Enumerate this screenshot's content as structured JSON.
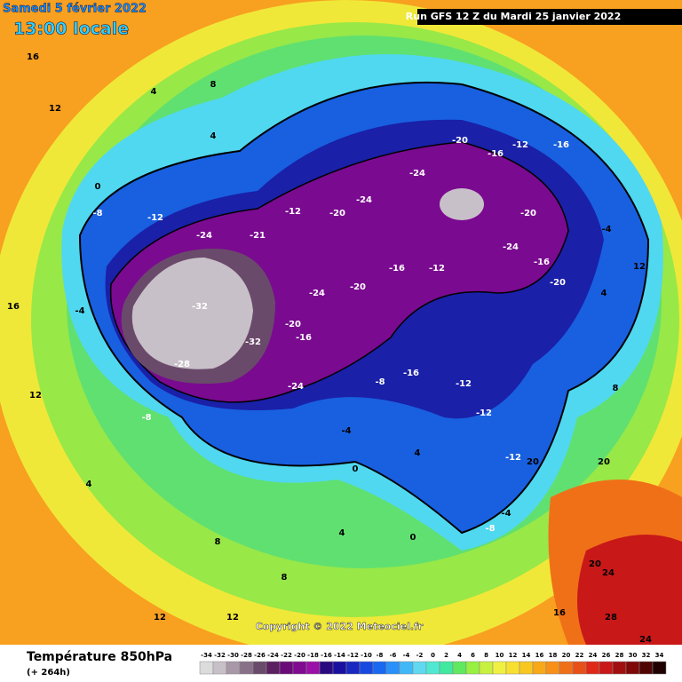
{
  "header": {
    "date": "Samedi 5 février 2022",
    "time": "13:00 locale",
    "run": "Run GFS 12 Z du Mardi 25 janvier 2022"
  },
  "copyright": "Copyright © 2022 Meteociel.fr",
  "footer": {
    "title": "Température 850hPa",
    "lead": "(+ 264h)"
  },
  "legend": {
    "ticks": [
      -34,
      -32,
      -30,
      -28,
      -26,
      -24,
      -22,
      -20,
      -18,
      -16,
      -14,
      -12,
      -10,
      -8,
      -6,
      -4,
      -2,
      0,
      2,
      4,
      6,
      8,
      10,
      12,
      14,
      16,
      18,
      20,
      22,
      24,
      26,
      28,
      30,
      32,
      34
    ],
    "colors": [
      "#dcdcdc",
      "#c8c0c8",
      "#a898a8",
      "#887088",
      "#6a4a6a",
      "#5a2060",
      "#6a0a78",
      "#800a90",
      "#9a10a8",
      "#2a0a80",
      "#1a10a0",
      "#1828c0",
      "#1848e0",
      "#1868f0",
      "#2890f8",
      "#40b8f8",
      "#60d8f0",
      "#50e8d0",
      "#40e8a0",
      "#60e860",
      "#98f040",
      "#c8f040",
      "#f0f040",
      "#f8e030",
      "#f8c820",
      "#f8a818",
      "#f89018",
      "#f07018",
      "#e85018",
      "#e02818",
      "#c81818",
      "#a01010",
      "#800808",
      "#500404",
      "#200000"
    ]
  },
  "map_labels": [
    16,
    12,
    8,
    4,
    4,
    0,
    -8,
    -12,
    -24,
    -21,
    -12,
    -20,
    -24,
    -24,
    -20,
    -16,
    -12,
    -16,
    -20,
    -24,
    -16,
    -20,
    -24,
    -20,
    -16,
    -12,
    -32,
    -28,
    -32,
    -20,
    -16,
    -24,
    -16,
    -12,
    -8,
    -12,
    -12,
    -8,
    -4,
    -4,
    0,
    4,
    4,
    8,
    4,
    12,
    16,
    12,
    12,
    16,
    20,
    24,
    28,
    24,
    20,
    -4,
    4,
    12,
    8,
    20,
    -8,
    -4,
    0,
    8
  ]
}
